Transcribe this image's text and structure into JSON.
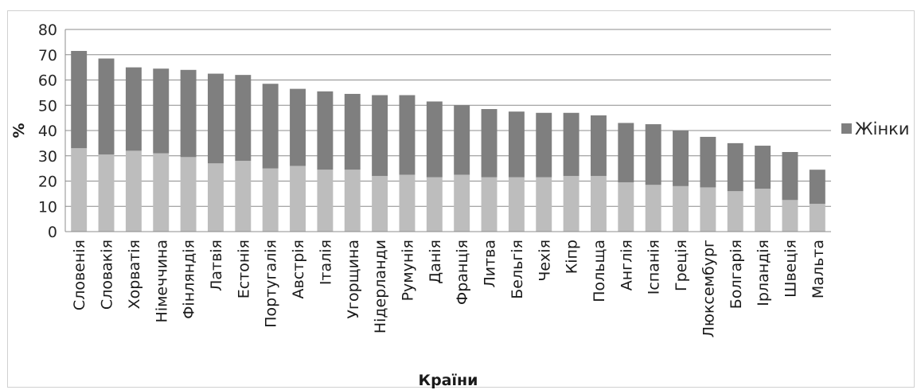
{
  "chart_data": {
    "type": "bar",
    "stacked": true,
    "xlabel": "Країни",
    "ylabel": "%",
    "ylim": [
      0,
      80
    ],
    "yticks": [
      0,
      10,
      20,
      30,
      40,
      50,
      60,
      70,
      80
    ],
    "grid": true,
    "legend_position": "right",
    "categories": [
      "Словенія",
      "Словакія",
      "Хорватія",
      "Німеччина",
      "Фінляндія",
      "Латвія",
      "Естонія",
      "Португалія",
      "Австрія",
      "Італія",
      "Угорщина",
      "Нідерланди",
      "Румунія",
      "Данія",
      "Франція",
      "Литва",
      "Бельгія",
      "Чехія",
      "Кіпр",
      "Польща",
      "Англія",
      "Іспанія",
      "Греція",
      "Люксембург",
      "Болгарія",
      "Ірландія",
      "Швеція",
      "Мальта"
    ],
    "series": [
      {
        "color": "#bdbdbd",
        "values": [
          33,
          30.5,
          32,
          31,
          29.5,
          27,
          28,
          25,
          26,
          24.5,
          24.5,
          22,
          22.5,
          21.5,
          22.5,
          21.5,
          21.5,
          21.5,
          22,
          22,
          19.5,
          18.5,
          18,
          17.5,
          16,
          17,
          12.5,
          11
        ]
      },
      {
        "name": "Жінки",
        "color": "#7f7f7f",
        "values": [
          38.5,
          38,
          33,
          33.5,
          34.5,
          35.5,
          34,
          33.5,
          30.5,
          31,
          30,
          32,
          31.5,
          30,
          27.5,
          27,
          26,
          25.5,
          25,
          24,
          23.5,
          24,
          22,
          20,
          19,
          17,
          19,
          13.5
        ]
      }
    ]
  }
}
